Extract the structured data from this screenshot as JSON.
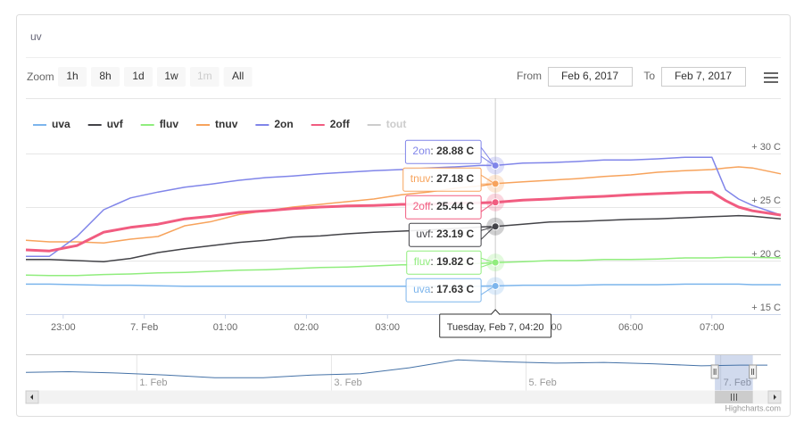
{
  "chart_data": {
    "type": "line",
    "title": "uv",
    "zoom_label": "Zoom",
    "zoom_buttons": [
      {
        "label": "1h",
        "enabled": true
      },
      {
        "label": "8h",
        "enabled": true
      },
      {
        "label": "1d",
        "enabled": true
      },
      {
        "label": "1w",
        "enabled": true
      },
      {
        "label": "1m",
        "enabled": false
      },
      {
        "label": "All",
        "enabled": true
      }
    ],
    "from_label": "From",
    "from_value": "Feb 6, 2017",
    "to_label": "To",
    "to_value": "Feb 7, 2017",
    "x": [
      22.54,
      22.83,
      23.17,
      23.5,
      23.83,
      24.17,
      24.5,
      24.83,
      25.17,
      25.5,
      25.83,
      26.17,
      26.5,
      26.83,
      27.17,
      27.5,
      27.83,
      28.17,
      28.33,
      28.67,
      29,
      29.33,
      29.67,
      30,
      30.33,
      30.67,
      31,
      31.17,
      31.33,
      31.5,
      31.85
    ],
    "xlim": [
      22.54,
      31.85
    ],
    "xticks": [
      {
        "value": 23,
        "label": "23:00"
      },
      {
        "value": 24,
        "label": "7. Feb"
      },
      {
        "value": 25,
        "label": "01:00"
      },
      {
        "value": 26,
        "label": "02:00"
      },
      {
        "value": 27,
        "label": "03:00"
      },
      {
        "value": 28,
        "label": "04:00"
      },
      {
        "value": 29,
        "label": "05:00"
      },
      {
        "value": 30,
        "label": "06:00"
      },
      {
        "value": 31,
        "label": "07:00"
      }
    ],
    "ylim": [
      15,
      35
    ],
    "yticks": [
      {
        "value": 15,
        "label": "+ 15 C"
      },
      {
        "value": 20,
        "label": "+ 20 C"
      },
      {
        "value": 25,
        "label": "+ 25 C"
      },
      {
        "value": 30,
        "label": "+ 30 C"
      }
    ],
    "grid": true,
    "legend": "top-left",
    "series": [
      {
        "name": "uva",
        "color": "#7cb5ec",
        "visible": true,
        "line_width": 1.5,
        "values": [
          17.8,
          17.8,
          17.75,
          17.7,
          17.7,
          17.65,
          17.6,
          17.6,
          17.6,
          17.6,
          17.6,
          17.6,
          17.6,
          17.6,
          17.6,
          17.6,
          17.6,
          17.6,
          17.63,
          17.7,
          17.7,
          17.7,
          17.75,
          17.75,
          17.75,
          17.8,
          17.8,
          17.8,
          17.8,
          17.75,
          17.75
        ]
      },
      {
        "name": "uvf",
        "color": "#434348",
        "visible": true,
        "line_width": 1.5,
        "values": [
          20.1,
          20.1,
          20.0,
          19.9,
          20.2,
          20.75,
          21.1,
          21.4,
          21.7,
          21.9,
          22.2,
          22.3,
          22.5,
          22.65,
          22.75,
          22.85,
          23.0,
          23.15,
          23.19,
          23.4,
          23.6,
          23.65,
          23.75,
          23.85,
          23.9,
          24.0,
          24.1,
          24.15,
          24.2,
          24.15,
          23.9
        ]
      },
      {
        "name": "fluv",
        "color": "#90ed7d",
        "visible": true,
        "line_width": 1.5,
        "values": [
          18.65,
          18.6,
          18.6,
          18.7,
          18.75,
          18.85,
          18.9,
          19.0,
          19.1,
          19.15,
          19.25,
          19.35,
          19.4,
          19.5,
          19.6,
          19.6,
          19.65,
          19.75,
          19.82,
          19.9,
          20.0,
          20.0,
          20.1,
          20.1,
          20.15,
          20.25,
          20.25,
          20.3,
          20.3,
          20.3,
          20.25
        ]
      },
      {
        "name": "tnuv",
        "color": "#f7a35c",
        "visible": true,
        "line_width": 1.5,
        "values": [
          21.9,
          21.75,
          21.75,
          21.65,
          22.0,
          22.25,
          23.25,
          23.65,
          24.3,
          24.65,
          25.0,
          25.25,
          25.5,
          25.75,
          26.15,
          26.4,
          26.75,
          27.0,
          27.18,
          27.35,
          27.5,
          27.65,
          27.85,
          28.0,
          28.25,
          28.4,
          28.5,
          28.65,
          28.75,
          28.65,
          28.1
        ]
      },
      {
        "name": "2on",
        "color": "#8085e9",
        "visible": true,
        "line_width": 1.5,
        "values": [
          20.4,
          20.4,
          22.25,
          24.75,
          25.85,
          26.4,
          26.85,
          27.15,
          27.5,
          27.75,
          27.9,
          28.1,
          28.25,
          28.4,
          28.5,
          28.65,
          28.75,
          28.9,
          28.88,
          29.1,
          29.15,
          29.25,
          29.4,
          29.4,
          29.5,
          29.65,
          29.65,
          26.6,
          25.75,
          25.15,
          24.25
        ]
      },
      {
        "name": "2off",
        "color": "#f15c80",
        "visible": true,
        "line_width": 3,
        "values": [
          21.0,
          20.9,
          21.4,
          22.65,
          23.1,
          23.4,
          23.9,
          24.15,
          24.5,
          24.65,
          24.85,
          25.0,
          25.1,
          25.15,
          25.25,
          25.25,
          25.35,
          25.4,
          25.44,
          25.65,
          25.75,
          25.9,
          26.0,
          26.15,
          26.25,
          26.35,
          26.4,
          25.6,
          25.0,
          24.65,
          24.25
        ]
      },
      {
        "name": "tout",
        "color": "#cccccc",
        "visible": false,
        "line_width": 1.5,
        "values": [
          null,
          null,
          null,
          null,
          null,
          null,
          null,
          null,
          null,
          null,
          null,
          null,
          null,
          null,
          null,
          null,
          null,
          null,
          null,
          null,
          null,
          null,
          null,
          null,
          null,
          null,
          null,
          null,
          null,
          null,
          null
        ]
      }
    ],
    "tooltip": {
      "header": "Tuesday, Feb 7, 04:20",
      "x": 28.33,
      "separator": ": ",
      "items": [
        {
          "name": "2on",
          "color": "#8085e9",
          "value": 28.88,
          "label": "28.88 C"
        },
        {
          "name": "tnuv",
          "color": "#f7a35c",
          "value": 27.18,
          "label": "27.18 C"
        },
        {
          "name": "2off",
          "color": "#f15c80",
          "value": 25.44,
          "label": "25.44 C"
        },
        {
          "name": "uvf",
          "color": "#434348",
          "value": 23.19,
          "label": "23.19 C"
        },
        {
          "name": "fluv",
          "color": "#90ed7d",
          "value": 19.82,
          "label": "19.82 C"
        },
        {
          "name": "uva",
          "color": "#7cb5ec",
          "value": 17.63,
          "label": "17.63 C"
        }
      ]
    },
    "navigator": {
      "x": [
        -0.14,
        0.3,
        0.8,
        1.3,
        1.8,
        2.3,
        2.8,
        3.3,
        3.8,
        4.3,
        4.8,
        5.3,
        5.8,
        6.3,
        6.8,
        7.2,
        7.48
      ],
      "values": [
        25.6,
        26.1,
        25.0,
        23.3,
        21.1,
        21.1,
        23.3,
        24.4,
        29.4,
        36.1,
        34.4,
        33.3,
        33.9,
        32.8,
        31.1,
        31.7,
        31.7
      ],
      "xlim": [
        -0.14,
        7.48
      ],
      "ylim": [
        10,
        40
      ],
      "xticks": [
        {
          "value": 1,
          "label": "1. Feb"
        },
        {
          "value": 3,
          "label": "3. Feb"
        },
        {
          "value": 5,
          "label": "5. Feb"
        },
        {
          "value": 7,
          "label": "7. Feb"
        }
      ],
      "selection": [
        6.94,
        7.33
      ],
      "color": "#4572a7"
    },
    "credits": "Highcharts.com"
  }
}
